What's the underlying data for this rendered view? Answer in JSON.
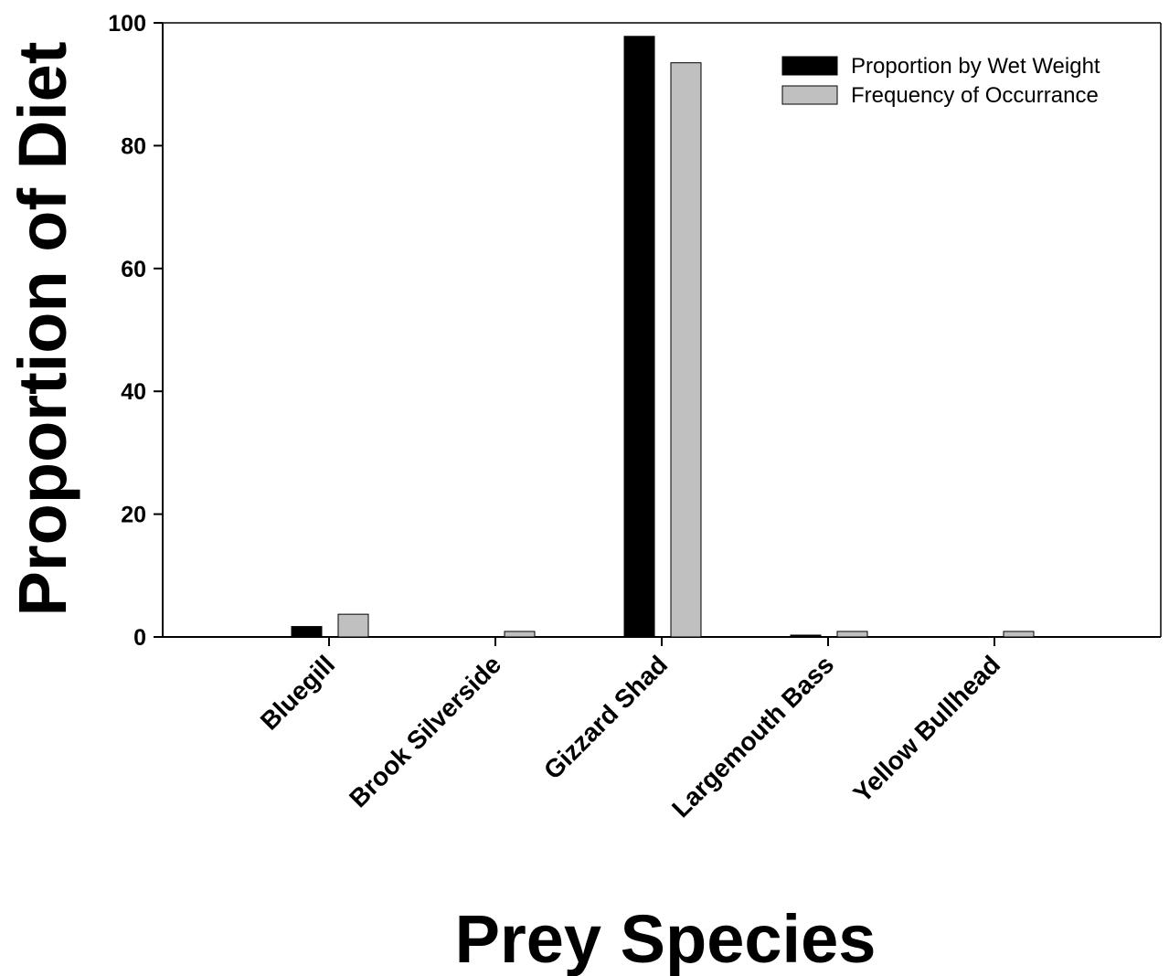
{
  "chart_data": {
    "type": "bar",
    "title": "",
    "xlabel": "Prey Species",
    "ylabel": "Proportion of Diet",
    "categories": [
      "Bluegill",
      "Brook Silverside",
      "Gizzard Shad",
      "Largemouth Bass",
      "Yellow Bullhead"
    ],
    "series": [
      {
        "name": "Proportion by Wet Weight",
        "color": "#000000",
        "values": [
          1.7,
          0,
          97.8,
          0.3,
          0
        ]
      },
      {
        "name": "Frequency of Occurrance",
        "color": "#c0c0c0",
        "values": [
          3.7,
          0.9,
          93.5,
          0.9,
          0.9
        ]
      }
    ],
    "yticks": [
      "0",
      "20",
      "40",
      "60",
      "80",
      "100"
    ],
    "ylim": [
      0,
      100
    ],
    "grid": false,
    "legend_position": "top-right"
  }
}
